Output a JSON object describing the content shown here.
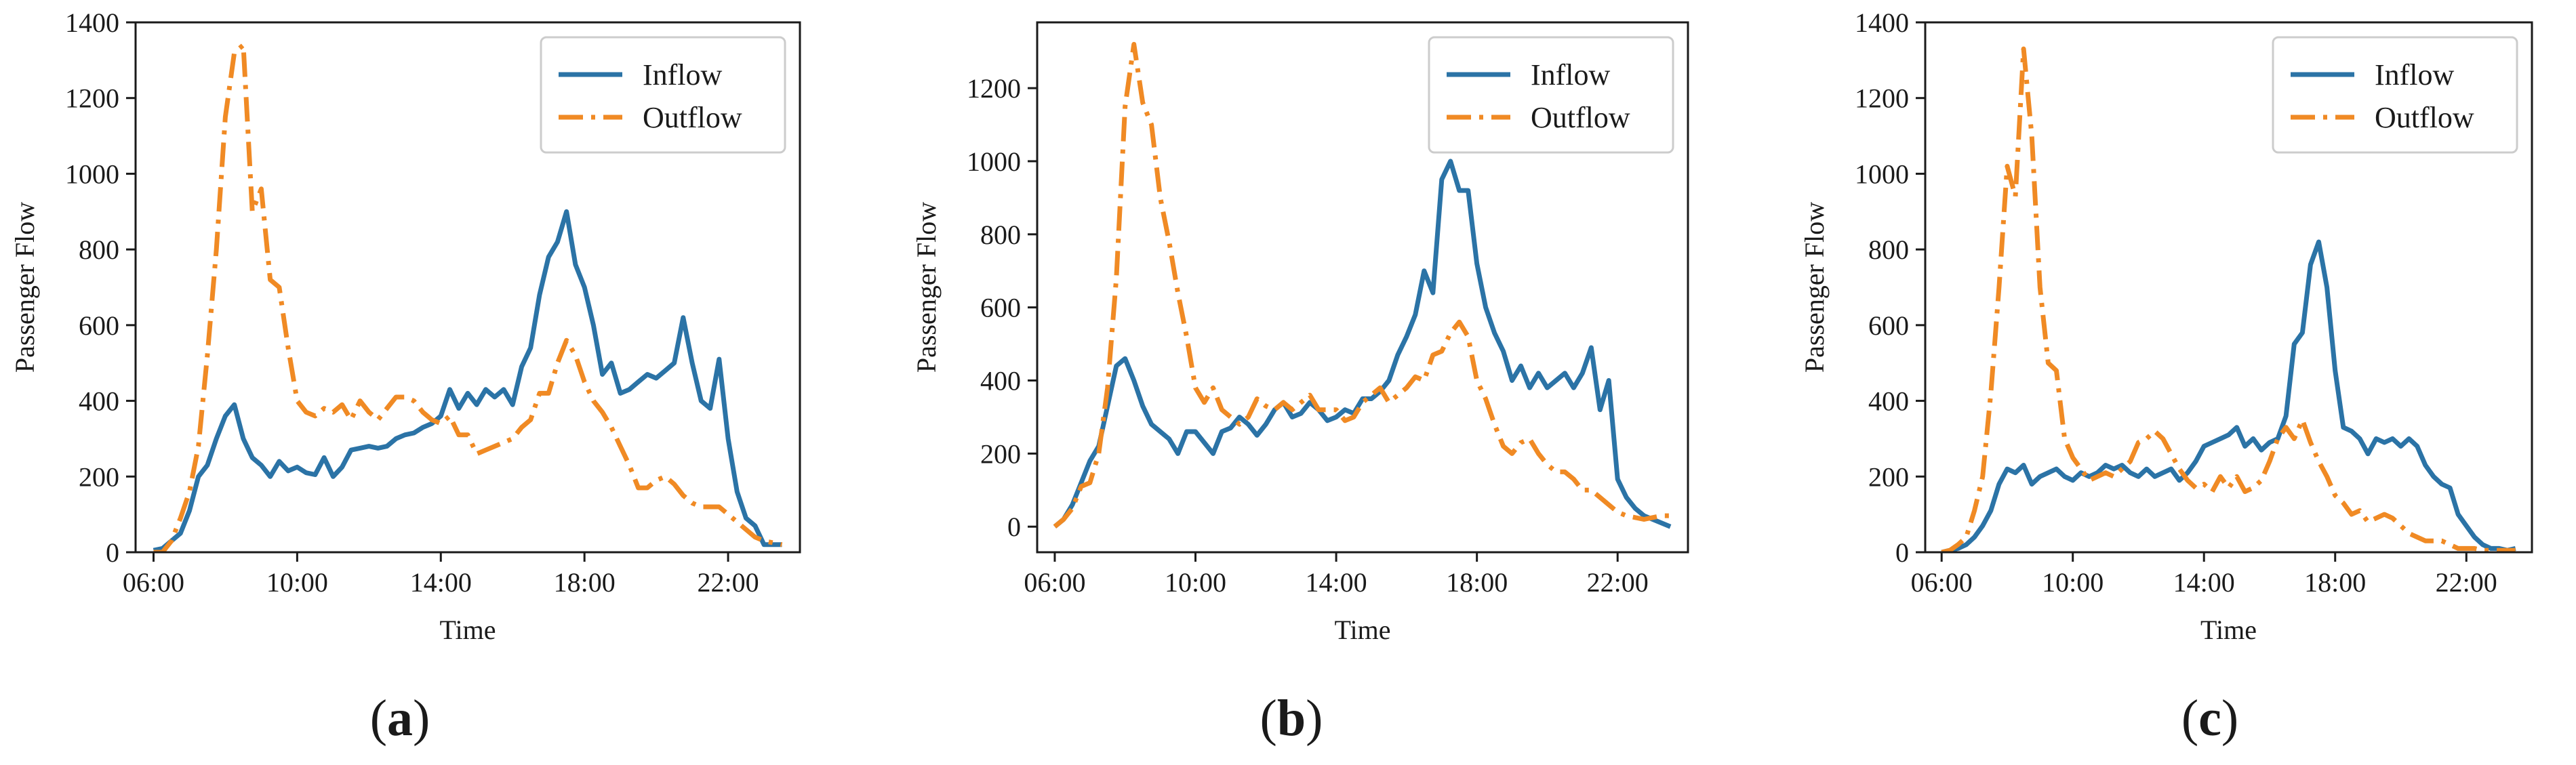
{
  "figure": {
    "legend_inflow": "Inflow",
    "legend_outflow": "Outflow",
    "colors": {
      "inflow": "#2b73a6",
      "outflow": "#f08a24",
      "axis": "#1a1a1a"
    }
  },
  "chart_data": [
    {
      "type": "line",
      "panel_label": {
        "open": "(",
        "letter": "a",
        "close": ")"
      },
      "xlabel": "Time",
      "ylabel": "Passenger Flow",
      "ylim": [
        0,
        1400
      ],
      "yticks": [
        0,
        200,
        400,
        600,
        800,
        1000,
        1200,
        1400
      ],
      "xlim": [
        5.5,
        24.0
      ],
      "xticks": [
        6,
        10,
        14,
        18,
        22
      ],
      "xtick_labels": [
        "06:00",
        "10:00",
        "14:00",
        "18:00",
        "22:00"
      ],
      "grid": false,
      "legend_position": "top-right",
      "series": [
        {
          "name": "Inflow",
          "style": "solid",
          "x": [
            6.0,
            6.25,
            6.5,
            6.75,
            7.0,
            7.25,
            7.5,
            7.75,
            8.0,
            8.25,
            8.5,
            8.75,
            9.0,
            9.25,
            9.5,
            9.75,
            10.0,
            10.25,
            10.5,
            10.75,
            11.0,
            11.25,
            11.5,
            11.75,
            12.0,
            12.25,
            12.5,
            12.75,
            13.0,
            13.25,
            13.5,
            13.75,
            14.0,
            14.25,
            14.5,
            14.75,
            15.0,
            15.25,
            15.5,
            15.75,
            16.0,
            16.25,
            16.5,
            16.75,
            17.0,
            17.25,
            17.5,
            17.75,
            18.0,
            18.25,
            18.5,
            18.75,
            19.0,
            19.25,
            19.5,
            19.75,
            20.0,
            20.25,
            20.5,
            20.75,
            21.0,
            21.25,
            21.5,
            21.75,
            22.0,
            22.25,
            22.5,
            22.75,
            23.0,
            23.25,
            23.5
          ],
          "values": [
            5,
            10,
            30,
            50,
            110,
            200,
            230,
            300,
            360,
            390,
            300,
            250,
            230,
            200,
            240,
            215,
            225,
            210,
            205,
            250,
            200,
            225,
            270,
            275,
            280,
            275,
            280,
            300,
            310,
            315,
            330,
            340,
            360,
            430,
            380,
            420,
            390,
            430,
            410,
            430,
            390,
            490,
            540,
            680,
            780,
            820,
            900,
            760,
            700,
            600,
            470,
            500,
            420,
            430,
            450,
            470,
            460,
            480,
            500,
            620,
            500,
            400,
            380,
            510,
            300,
            160,
            90,
            70,
            20,
            20,
            20
          ]
        },
        {
          "name": "Outflow",
          "style": "dashdot",
          "x": [
            6.0,
            6.25,
            6.5,
            6.75,
            7.0,
            7.25,
            7.5,
            7.75,
            8.0,
            8.25,
            8.5,
            8.75,
            9.0,
            9.25,
            9.5,
            9.75,
            10.0,
            10.25,
            10.5,
            10.75,
            11.0,
            11.25,
            11.5,
            11.75,
            12.0,
            12.25,
            12.5,
            12.75,
            13.0,
            13.25,
            13.5,
            13.75,
            14.0,
            14.25,
            14.5,
            14.75,
            15.0,
            15.25,
            15.5,
            15.75,
            16.0,
            16.25,
            16.5,
            16.75,
            17.0,
            17.25,
            17.5,
            17.75,
            18.0,
            18.25,
            18.5,
            18.75,
            19.0,
            19.25,
            19.5,
            19.75,
            20.0,
            20.25,
            20.5,
            20.75,
            21.0,
            21.25,
            21.5,
            21.75,
            22.0,
            22.25,
            22.5,
            22.75,
            23.0,
            23.25,
            23.5
          ],
          "values": [
            0,
            0,
            30,
            90,
            160,
            280,
            520,
            800,
            1150,
            1320,
            1340,
            900,
            960,
            720,
            700,
            540,
            400,
            370,
            360,
            380,
            370,
            390,
            350,
            400,
            370,
            350,
            380,
            410,
            410,
            400,
            370,
            350,
            340,
            360,
            310,
            310,
            260,
            270,
            280,
            290,
            300,
            330,
            350,
            420,
            420,
            500,
            560,
            520,
            450,
            400,
            370,
            330,
            280,
            230,
            170,
            170,
            190,
            200,
            180,
            150,
            130,
            120,
            120,
            120,
            100,
            80,
            60,
            40,
            30,
            25,
            20
          ]
        }
      ]
    },
    {
      "type": "line",
      "panel_label": {
        "open": "(",
        "letter": "b",
        "close": ")"
      },
      "xlabel": "Time",
      "ylabel": "Passenger Flow",
      "ylim": [
        -70,
        1380
      ],
      "yticks": [
        0,
        200,
        400,
        600,
        800,
        1000,
        1200
      ],
      "xlim": [
        5.5,
        24.0
      ],
      "xticks": [
        6,
        10,
        14,
        18,
        22
      ],
      "xtick_labels": [
        "06:00",
        "10:00",
        "14:00",
        "18:00",
        "22:00"
      ],
      "grid": false,
      "legend_position": "top-right",
      "series": [
        {
          "name": "Inflow",
          "style": "solid",
          "x": [
            6.0,
            6.25,
            6.5,
            6.75,
            7.0,
            7.25,
            7.5,
            7.75,
            8.0,
            8.25,
            8.5,
            8.75,
            9.0,
            9.25,
            9.5,
            9.75,
            10.0,
            10.25,
            10.5,
            10.75,
            11.0,
            11.25,
            11.5,
            11.75,
            12.0,
            12.25,
            12.5,
            12.75,
            13.0,
            13.25,
            13.5,
            13.75,
            14.0,
            14.25,
            14.5,
            14.75,
            15.0,
            15.25,
            15.5,
            15.75,
            16.0,
            16.25,
            16.5,
            16.75,
            17.0,
            17.25,
            17.5,
            17.75,
            18.0,
            18.25,
            18.5,
            18.75,
            19.0,
            19.25,
            19.5,
            19.75,
            20.0,
            20.25,
            20.5,
            20.75,
            21.0,
            21.25,
            21.5,
            21.75,
            22.0,
            22.25,
            22.5,
            22.75,
            23.0,
            23.25,
            23.5
          ],
          "values": [
            0,
            20,
            60,
            120,
            180,
            220,
            330,
            440,
            460,
            400,
            330,
            280,
            260,
            240,
            200,
            260,
            260,
            230,
            200,
            260,
            270,
            300,
            280,
            250,
            280,
            320,
            340,
            300,
            310,
            340,
            320,
            290,
            300,
            320,
            310,
            350,
            350,
            370,
            400,
            470,
            520,
            580,
            700,
            640,
            950,
            1000,
            920,
            920,
            720,
            600,
            530,
            480,
            400,
            440,
            380,
            420,
            380,
            400,
            420,
            380,
            420,
            490,
            320,
            400,
            130,
            80,
            50,
            30,
            20,
            10,
            0
          ]
        },
        {
          "name": "Outflow",
          "style": "dashdot",
          "x": [
            6.0,
            6.25,
            6.5,
            6.75,
            7.0,
            7.25,
            7.5,
            7.75,
            8.0,
            8.25,
            8.5,
            8.75,
            9.0,
            9.25,
            9.5,
            9.75,
            10.0,
            10.25,
            10.5,
            10.75,
            11.0,
            11.25,
            11.5,
            11.75,
            12.0,
            12.25,
            12.5,
            12.75,
            13.0,
            13.25,
            13.5,
            13.75,
            14.0,
            14.25,
            14.5,
            14.75,
            15.0,
            15.25,
            15.5,
            15.75,
            16.0,
            16.25,
            16.5,
            16.75,
            17.0,
            17.25,
            17.5,
            17.75,
            18.0,
            18.25,
            18.5,
            18.75,
            19.0,
            19.25,
            19.5,
            19.75,
            20.0,
            20.25,
            20.5,
            20.75,
            21.0,
            21.25,
            21.5,
            21.75,
            22.0,
            22.25,
            22.5,
            22.75,
            23.0,
            23.25,
            23.5
          ],
          "values": [
            0,
            20,
            50,
            110,
            120,
            200,
            380,
            680,
            1150,
            1320,
            1160,
            1100,
            900,
            780,
            640,
            520,
            380,
            340,
            380,
            320,
            300,
            280,
            300,
            350,
            330,
            320,
            340,
            320,
            340,
            360,
            320,
            320,
            320,
            290,
            300,
            340,
            360,
            380,
            340,
            360,
            380,
            410,
            400,
            470,
            480,
            530,
            560,
            520,
            400,
            350,
            280,
            220,
            200,
            230,
            240,
            200,
            170,
            150,
            150,
            130,
            100,
            100,
            80,
            60,
            40,
            30,
            25,
            20,
            25,
            30,
            30
          ]
        }
      ]
    },
    {
      "type": "line",
      "panel_label": {
        "open": "(",
        "letter": "c",
        "close": ")"
      },
      "xlabel": "Time",
      "ylabel": "Passenger Flow",
      "ylim": [
        0,
        1400
      ],
      "yticks": [
        0,
        200,
        400,
        600,
        800,
        1000,
        1200,
        1400
      ],
      "xlim": [
        5.5,
        24.0
      ],
      "xticks": [
        6,
        10,
        14,
        18,
        22
      ],
      "xtick_labels": [
        "06:00",
        "10:00",
        "14:00",
        "18:00",
        "22:00"
      ],
      "grid": false,
      "legend_position": "top-right",
      "series": [
        {
          "name": "Inflow",
          "style": "solid",
          "x": [
            6.0,
            6.25,
            6.5,
            6.75,
            7.0,
            7.25,
            7.5,
            7.75,
            8.0,
            8.25,
            8.5,
            8.75,
            9.0,
            9.25,
            9.5,
            9.75,
            10.0,
            10.25,
            10.5,
            10.75,
            11.0,
            11.25,
            11.5,
            11.75,
            12.0,
            12.25,
            12.5,
            12.75,
            13.0,
            13.25,
            13.5,
            13.75,
            14.0,
            14.25,
            14.5,
            14.75,
            15.0,
            15.25,
            15.5,
            15.75,
            16.0,
            16.25,
            16.5,
            16.75,
            17.0,
            17.25,
            17.5,
            17.75,
            18.0,
            18.25,
            18.5,
            18.75,
            19.0,
            19.25,
            19.5,
            19.75,
            20.0,
            20.25,
            20.5,
            20.75,
            21.0,
            21.25,
            21.5,
            21.75,
            22.0,
            22.25,
            22.5,
            22.75,
            23.0,
            23.25,
            23.5
          ],
          "values": [
            0,
            5,
            10,
            20,
            40,
            70,
            110,
            180,
            220,
            210,
            230,
            180,
            200,
            210,
            220,
            200,
            190,
            210,
            200,
            210,
            230,
            220,
            230,
            210,
            200,
            220,
            200,
            210,
            220,
            190,
            210,
            240,
            280,
            290,
            300,
            310,
            330,
            280,
            300,
            270,
            290,
            300,
            360,
            550,
            580,
            760,
            820,
            700,
            480,
            330,
            320,
            300,
            260,
            300,
            290,
            300,
            280,
            300,
            280,
            230,
            200,
            180,
            170,
            100,
            70,
            40,
            20,
            10,
            10,
            5,
            10
          ]
        },
        {
          "name": "Outflow",
          "style": "dashdot",
          "x": [
            6.0,
            6.25,
            6.5,
            6.75,
            7.0,
            7.25,
            7.5,
            7.75,
            8.0,
            8.25,
            8.5,
            8.75,
            9.0,
            9.25,
            9.5,
            9.75,
            10.0,
            10.25,
            10.5,
            10.75,
            11.0,
            11.25,
            11.5,
            11.75,
            12.0,
            12.25,
            12.5,
            12.75,
            13.0,
            13.25,
            13.5,
            13.75,
            14.0,
            14.25,
            14.5,
            14.75,
            15.0,
            15.25,
            15.5,
            15.75,
            16.0,
            16.25,
            16.5,
            16.75,
            17.0,
            17.25,
            17.5,
            17.75,
            18.0,
            18.25,
            18.5,
            18.75,
            19.0,
            19.25,
            19.5,
            19.75,
            20.0,
            20.25,
            20.5,
            20.75,
            21.0,
            21.25,
            21.5,
            21.75,
            22.0,
            22.25,
            22.5,
            22.75,
            23.0,
            23.25,
            23.5
          ],
          "values": [
            0,
            5,
            20,
            40,
            110,
            200,
            420,
            700,
            1020,
            940,
            1330,
            1100,
            700,
            500,
            480,
            300,
            250,
            220,
            190,
            200,
            210,
            200,
            220,
            240,
            290,
            300,
            320,
            300,
            260,
            220,
            190,
            170,
            180,
            160,
            200,
            170,
            200,
            160,
            170,
            190,
            240,
            300,
            330,
            300,
            350,
            290,
            240,
            200,
            150,
            130,
            100,
            110,
            80,
            90,
            100,
            90,
            70,
            50,
            40,
            30,
            30,
            30,
            20,
            10,
            10,
            10,
            5,
            5,
            5,
            5,
            5
          ]
        }
      ]
    }
  ]
}
